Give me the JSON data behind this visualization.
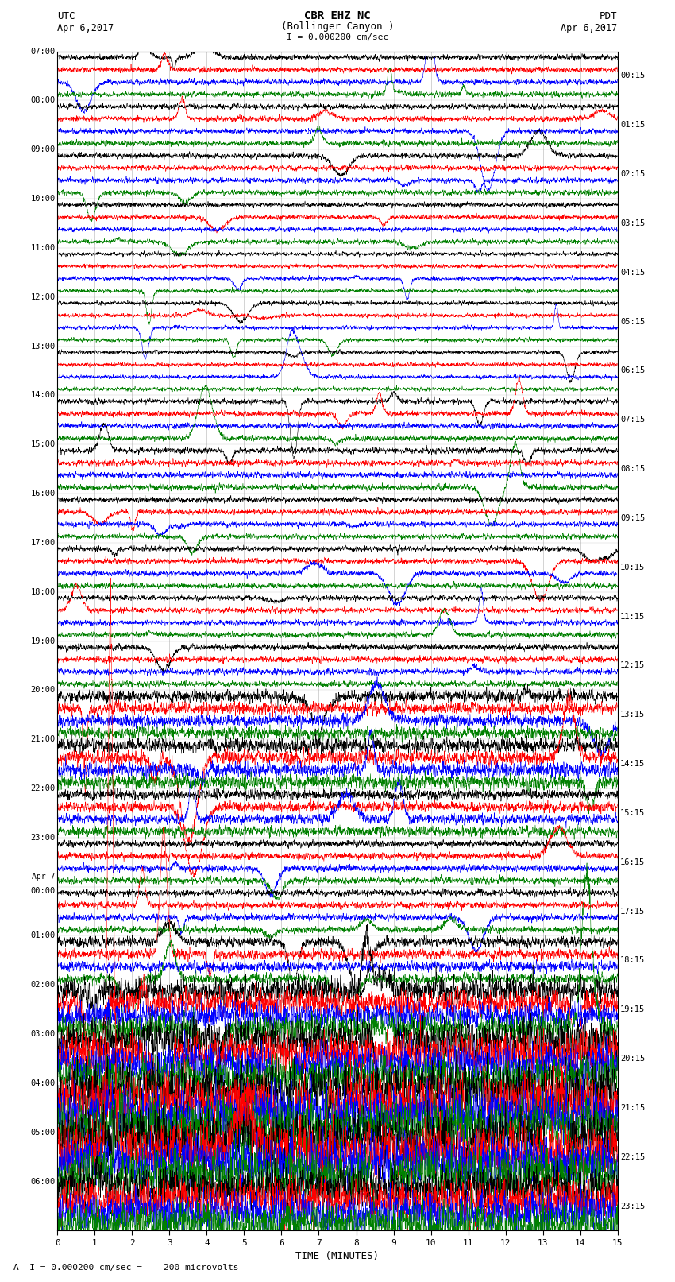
{
  "title_line1": "CBR EHZ NC",
  "title_line2": "(Bollinger Canyon )",
  "scale_label": "I = 0.000200 cm/sec",
  "utc_label": "UTC",
  "utc_date": "Apr 6,2017",
  "pdt_label": "PDT",
  "pdt_date": "Apr 6,2017",
  "xlabel": "TIME (MINUTES)",
  "footer_text": "A  I = 0.000200 cm/sec =    200 microvolts",
  "x_ticks": [
    0,
    1,
    2,
    3,
    4,
    5,
    6,
    7,
    8,
    9,
    10,
    11,
    12,
    13,
    14,
    15
  ],
  "left_times": [
    "07:00",
    "08:00",
    "09:00",
    "10:00",
    "11:00",
    "12:00",
    "13:00",
    "14:00",
    "15:00",
    "16:00",
    "17:00",
    "18:00",
    "19:00",
    "20:00",
    "21:00",
    "22:00",
    "23:00",
    "Apr 7\n00:00",
    "01:00",
    "02:00",
    "03:00",
    "04:00",
    "05:00",
    "06:00"
  ],
  "right_times": [
    "00:15",
    "01:15",
    "02:15",
    "03:15",
    "04:15",
    "05:15",
    "06:15",
    "07:15",
    "08:15",
    "09:15",
    "10:15",
    "11:15",
    "12:15",
    "13:15",
    "14:15",
    "15:15",
    "16:15",
    "17:15",
    "18:15",
    "19:15",
    "20:15",
    "21:15",
    "22:15",
    "23:15"
  ],
  "n_rows": 24,
  "traces_per_row": 4,
  "colors": [
    "black",
    "red",
    "blue",
    "green"
  ],
  "bg_color": "white",
  "figsize": [
    8.5,
    16.13
  ],
  "dpi": 100,
  "amplitude_scale": [
    0.8,
    0.8,
    0.8,
    0.7,
    0.6,
    0.6,
    0.6,
    0.8,
    0.9,
    0.8,
    0.8,
    0.8,
    0.9,
    1.8,
    2.2,
    1.5,
    1.0,
    1.0,
    1.5,
    4.0,
    6.0,
    8.0,
    8.0,
    6.0
  ]
}
